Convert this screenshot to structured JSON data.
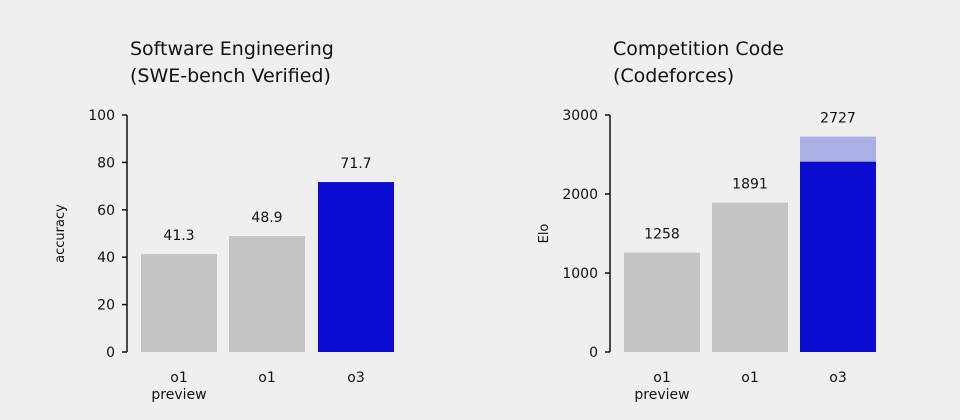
{
  "chart_data": [
    {
      "type": "bar",
      "title": "Software Engineering",
      "subtitle": "(SWE-bench Verified)",
      "ylabel": "accuracy",
      "ylim": [
        0,
        100
      ],
      "yticks": [
        "0",
        "20",
        "40",
        "60",
        "80",
        "100"
      ],
      "categories": [
        [
          "o1",
          "preview"
        ],
        [
          "o1"
        ],
        [
          "o3"
        ]
      ],
      "values": [
        41.3,
        48.9,
        71.7
      ],
      "value_labels": [
        "41.3",
        "48.9",
        "71.7"
      ],
      "colors": [
        "#c4c4c4",
        "#c4c4c4",
        "#0b0bd1"
      ],
      "grid": false
    },
    {
      "type": "bar",
      "title": "Competition Code",
      "subtitle": "(Codeforces)",
      "ylabel": "Elo",
      "ylim": [
        0,
        3000
      ],
      "yticks": [
        "0",
        "1000",
        "2000",
        "3000"
      ],
      "categories": [
        [
          "o1",
          "preview"
        ],
        [
          "o1"
        ],
        [
          "o3"
        ]
      ],
      "values": [
        1258,
        1891,
        2727
      ],
      "value_labels": [
        "1258",
        "1891",
        "2727"
      ],
      "stacked_segments": [
        {
          "category_index": 2,
          "from": 0,
          "to": 2410,
          "color": "#0b0bd1"
        },
        {
          "category_index": 2,
          "from": 2410,
          "to": 2727,
          "color": "#a9b0e6"
        }
      ],
      "colors": [
        "#c4c4c4",
        "#c4c4c4",
        "#0b0bd1"
      ],
      "grid": false
    }
  ]
}
